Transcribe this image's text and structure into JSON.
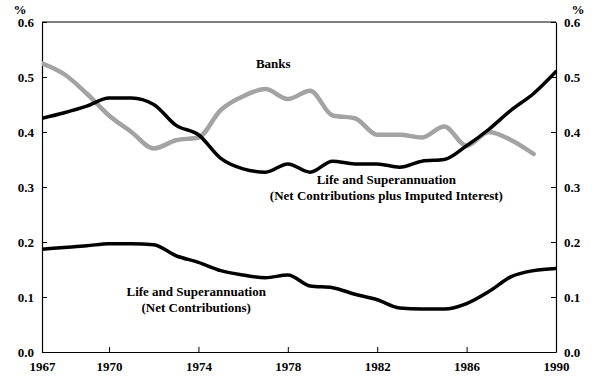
{
  "chart_data": {
    "type": "line",
    "y_label": "%",
    "y2_label": "%",
    "x": [
      1967,
      1968,
      1969,
      1970,
      1971,
      1972,
      1973,
      1974,
      1975,
      1976,
      1977,
      1978,
      1979,
      1980,
      1981,
      1982,
      1983,
      1984,
      1985,
      1986,
      1987,
      1988,
      1989,
      1990
    ],
    "xlim": [
      1967,
      1990
    ],
    "xticks": [
      1967,
      1970,
      1974,
      1978,
      1982,
      1986,
      1990
    ],
    "ylim": [
      0,
      0.6
    ],
    "yticks": [
      {
        "value": 0,
        "label": "0.0"
      },
      0.1,
      0.2,
      0.3,
      0.4,
      0.5,
      0.6
    ],
    "y2lim": [
      0,
      0.6
    ],
    "y2ticks": [
      {
        "value": 0,
        "label": "0.0"
      },
      0.1,
      0.2,
      0.3,
      0.4,
      0.5,
      0.6
    ],
    "series": [
      {
        "name": "Banks",
        "color": "#a3a3a3",
        "values": [
          0.525,
          0.505,
          0.47,
          0.43,
          0.4,
          0.37,
          0.385,
          0.39,
          0.44,
          0.465,
          0.478,
          0.46,
          0.475,
          0.43,
          0.425,
          0.395,
          0.395,
          0.39,
          0.41,
          0.375,
          0.4,
          0.385,
          0.36,
          null
        ]
      },
      {
        "name": "Life and Superannuation (Net Contributions plus Imputed Interest)",
        "color": "#000000",
        "values": [
          0.425,
          0.435,
          0.447,
          0.462,
          0.462,
          0.45,
          0.412,
          0.395,
          0.352,
          0.333,
          0.327,
          0.342,
          0.327,
          0.347,
          0.342,
          0.342,
          0.336,
          0.347,
          0.35,
          0.375,
          0.405,
          0.44,
          0.47,
          0.51
        ]
      },
      {
        "name": "Life and Superannuation (Net Contributions)",
        "color": "#000000",
        "values": [
          0.187,
          0.19,
          0.193,
          0.197,
          0.197,
          0.195,
          0.175,
          0.163,
          0.148,
          0.14,
          0.135,
          0.14,
          0.12,
          0.117,
          0.105,
          0.095,
          0.08,
          0.078,
          0.078,
          0.088,
          0.11,
          0.137,
          0.148,
          0.152
        ]
      }
    ]
  }
}
